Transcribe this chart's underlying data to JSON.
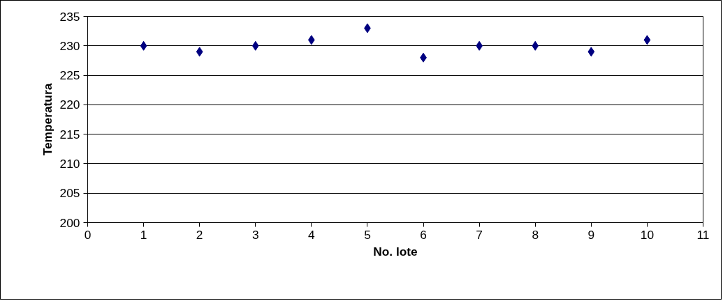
{
  "chart_data": {
    "type": "scatter",
    "xlabel": "No. lote",
    "ylabel": "Temperatura",
    "x": [
      1,
      2,
      3,
      4,
      5,
      6,
      7,
      8,
      9,
      10
    ],
    "series": [
      {
        "color": "#000080",
        "values": [
          230,
          229,
          230,
          231,
          233,
          228,
          230,
          230,
          229,
          231
        ]
      }
    ],
    "xlim": [
      0,
      11
    ],
    "xticks": [
      0,
      1,
      2,
      3,
      4,
      5,
      6,
      7,
      8,
      9,
      10,
      11
    ],
    "ylim": [
      200,
      235
    ],
    "yticks": [
      200,
      205,
      210,
      215,
      220,
      225,
      230,
      235
    ],
    "grid": "y",
    "marker": "diamond"
  }
}
